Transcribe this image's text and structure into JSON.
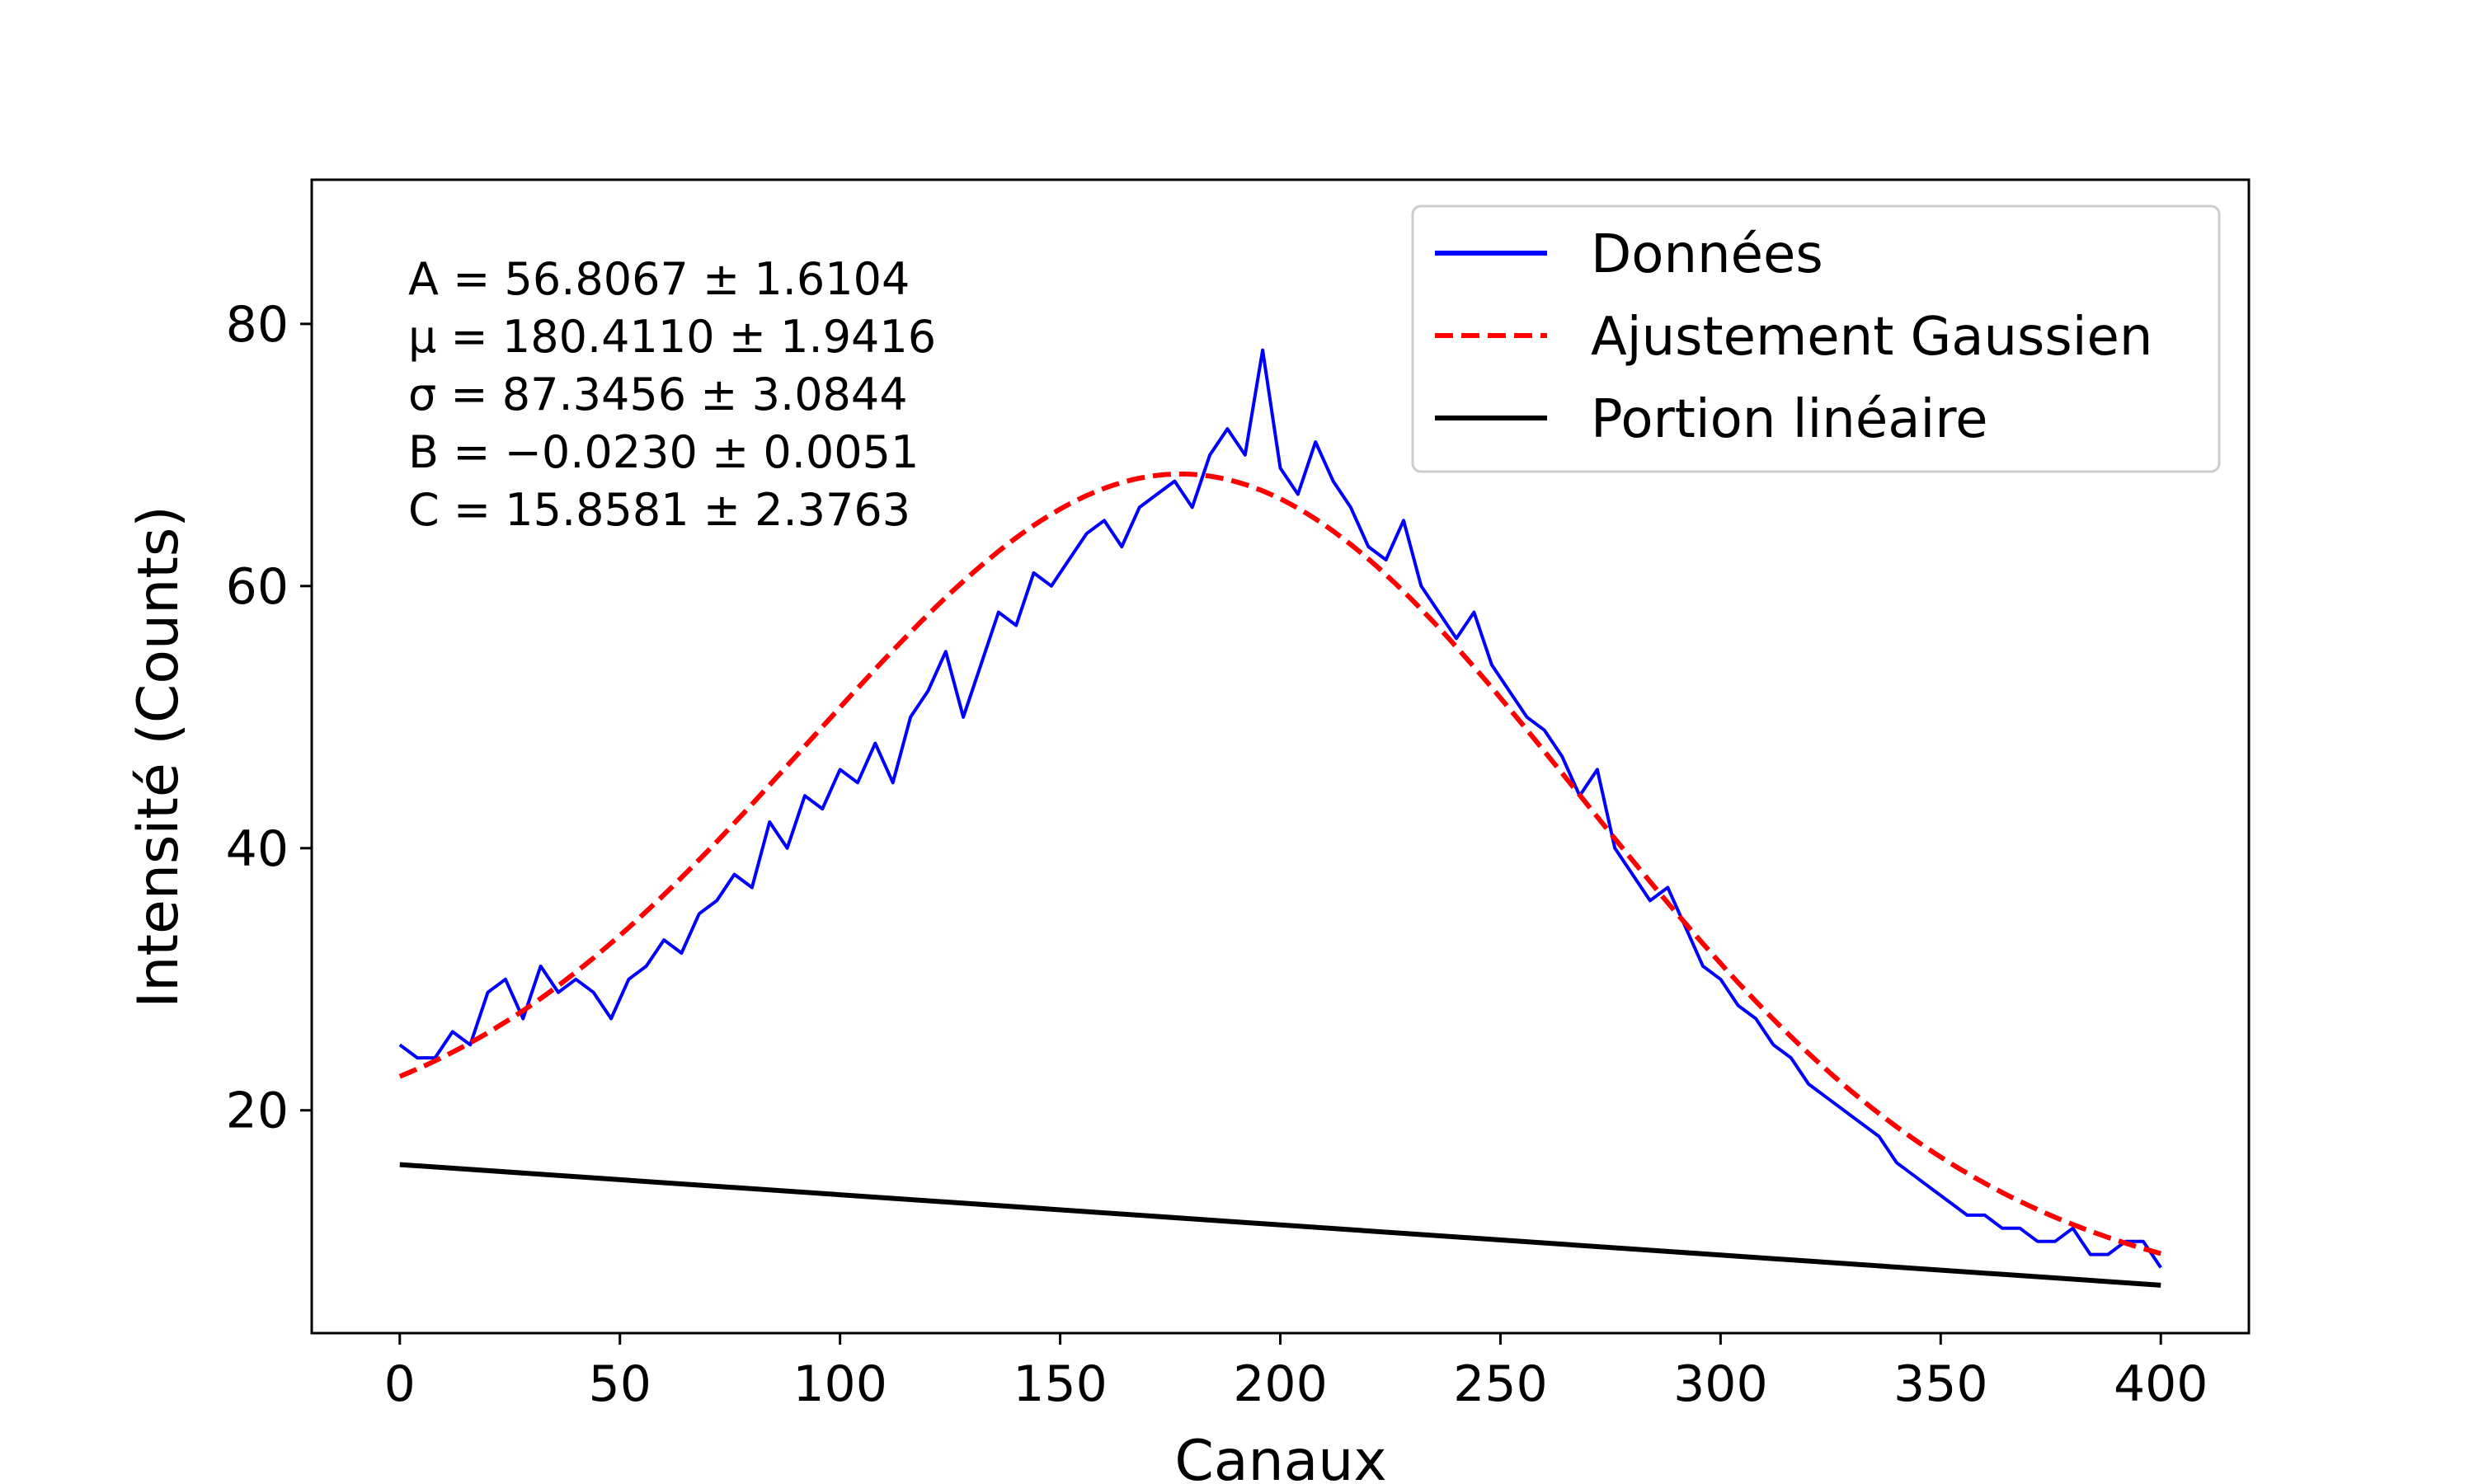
{
  "chart_data": {
    "type": "line",
    "xlabel": "Canaux",
    "ylabel": "Intensité (Counts)",
    "xlim": [
      -20,
      420
    ],
    "ylim": [
      3,
      91
    ],
    "xticks": [
      0,
      50,
      100,
      150,
      200,
      250,
      300,
      350,
      400
    ],
    "yticks": [
      20,
      40,
      60,
      80
    ],
    "grid": false,
    "legend_position": "top-right",
    "fit_params": {
      "A": 56.8067,
      "mu": 180.411,
      "sigma": 87.3456,
      "B": -0.023,
      "C": 15.8581
    },
    "annotations": [
      "A = 56.8067 ± 1.6104",
      "μ = 180.4110 ± 1.9416",
      "σ = 87.3456 ± 3.0844",
      "B = −0.0230 ± 0.0051",
      "C = 15.8581 ± 2.3763"
    ],
    "series": [
      {
        "name": "Données",
        "color": "#0000ff",
        "style": "solid",
        "x_start": 0,
        "x_step": 4,
        "values": [
          25,
          24,
          24,
          26,
          25,
          29,
          30,
          27,
          31,
          29,
          30,
          29,
          27,
          30,
          31,
          33,
          32,
          35,
          36,
          38,
          37,
          42,
          40,
          44,
          43,
          46,
          45,
          48,
          45,
          50,
          52,
          55,
          50,
          54,
          58,
          57,
          61,
          60,
          62,
          64,
          65,
          63,
          66,
          67,
          68,
          66,
          70,
          72,
          70,
          78,
          69,
          67,
          71,
          68,
          66,
          63,
          62,
          65,
          60,
          58,
          56,
          58,
          54,
          52,
          50,
          49,
          47,
          44,
          46,
          40,
          38,
          36,
          37,
          34,
          31,
          30,
          28,
          27,
          25,
          24,
          22,
          21,
          20,
          19,
          18,
          16,
          15,
          14,
          13,
          12,
          12,
          11,
          11,
          10,
          10,
          11,
          9,
          9,
          10,
          10,
          8
        ]
      },
      {
        "name": "Ajustement Gaussien",
        "color": "#ff0000",
        "style": "dashed",
        "model": "gaussian_plus_linear"
      },
      {
        "name": "Portion linéaire",
        "color": "#000000",
        "style": "solid",
        "model": "linear"
      }
    ]
  }
}
